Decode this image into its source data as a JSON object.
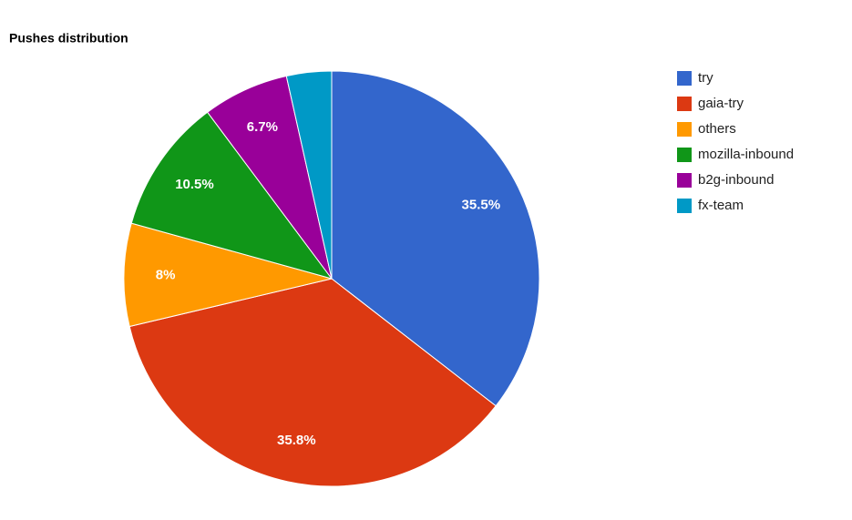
{
  "chart_data": {
    "type": "pie",
    "title": "Pushes distribution",
    "categories": [
      "try",
      "gaia-try",
      "others",
      "mozilla-inbound",
      "b2g-inbound",
      "fx-team"
    ],
    "values": [
      35.5,
      35.8,
      8,
      10.5,
      6.7,
      3.5
    ],
    "value_labels": [
      "35.5%",
      "35.8%",
      "8%",
      "10.5%",
      "6.7%",
      null
    ],
    "colors": [
      "#3366cc",
      "#dc3912",
      "#ff9900",
      "#109618",
      "#990099",
      "#0099c6"
    ],
    "legend": "right"
  }
}
